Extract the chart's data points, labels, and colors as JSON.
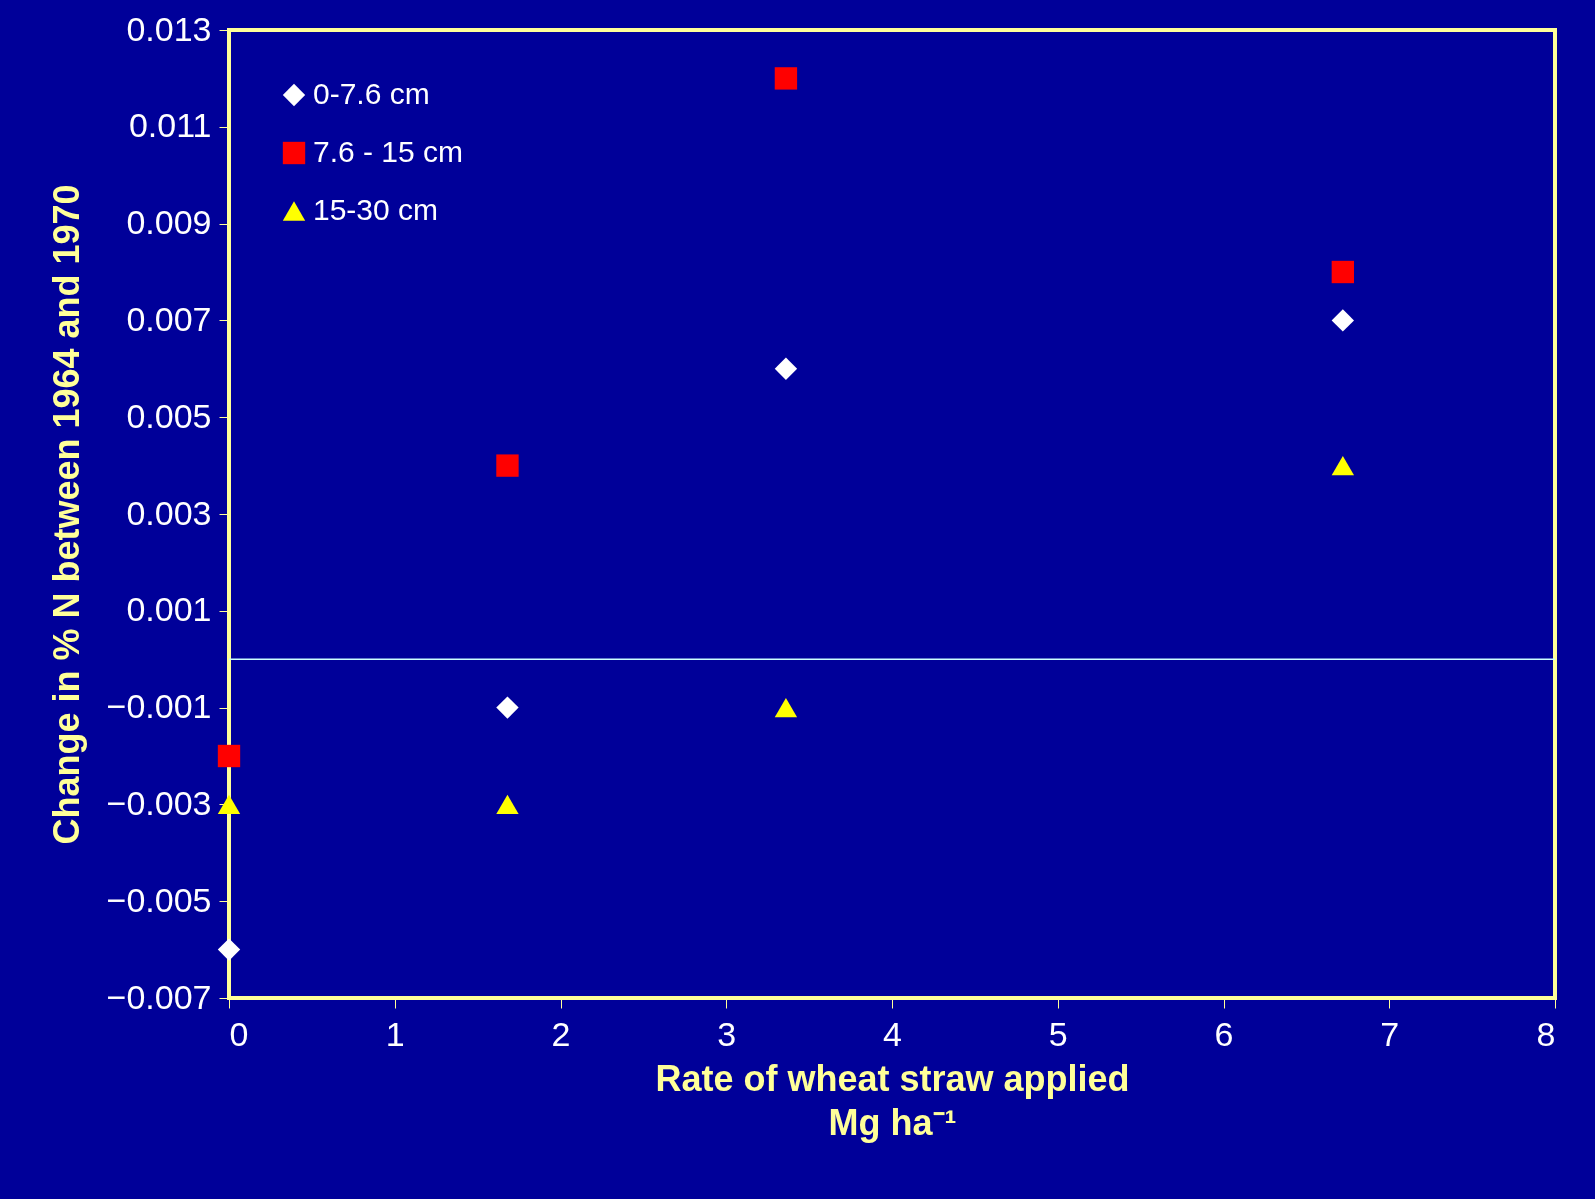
{
  "chart_data": {
    "type": "scatter",
    "xlabel": "Rate of wheat straw applied\nMg ha⁻¹",
    "ylabel": "Change in % N between 1964 and 1970",
    "x": [
      0,
      1.68,
      3.36,
      6.72
    ],
    "series": [
      {
        "name": "0-7.6 cm",
        "color": "#ffffff",
        "marker": "diamond",
        "values": [
          -0.006,
          -0.001,
          0.006,
          0.007
        ]
      },
      {
        "name": "7.6 - 15 cm",
        "color": "#ff0000",
        "marker": "square",
        "values": [
          -0.002,
          0.004,
          0.012,
          0.008
        ]
      },
      {
        "name": "15-30 cm",
        "color": "#ffff00",
        "marker": "triangle",
        "values": [
          -0.003,
          -0.003,
          -0.001,
          0.004
        ]
      }
    ],
    "xlim": [
      0,
      8
    ],
    "xticks": [
      0,
      1,
      2,
      3,
      4,
      5,
      6,
      7,
      8
    ],
    "ylim": [
      -0.007,
      0.013
    ],
    "yticks": [
      -0.007,
      -0.005,
      -0.003,
      -0.001,
      0.001,
      0.003,
      0.005,
      0.007,
      0.009,
      0.011,
      0.013
    ],
    "ref_lines": [
      {
        "axis": "y",
        "value": 0,
        "color": "#ccffff"
      }
    ],
    "grid": false,
    "legend": "top left"
  }
}
